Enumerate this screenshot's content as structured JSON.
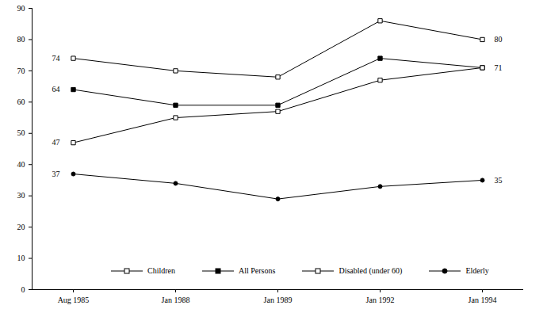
{
  "chart_data": {
    "type": "line",
    "categories": [
      "Aug 1985",
      "Jan 1988",
      "Jan 1989",
      "Jan 1992",
      "Jan 1994"
    ],
    "series": [
      {
        "name": "Children",
        "color": "#000000",
        "marker": "square-open",
        "values": [
          74,
          70,
          68,
          86,
          80
        ],
        "value_labels": [
          "74",
          null,
          null,
          null,
          "80"
        ]
      },
      {
        "name": "All Persons",
        "color": "#000000",
        "marker": "square",
        "values": [
          64,
          59,
          59,
          74,
          71
        ],
        "value_labels": [
          "64",
          null,
          null,
          null,
          "71"
        ]
      },
      {
        "name": "Disabled (under 60)",
        "color": "#000000",
        "marker": "square-open",
        "values": [
          47,
          55,
          57,
          67,
          71
        ],
        "value_labels": [
          "47",
          null,
          null,
          null,
          null
        ]
      },
      {
        "name": "Elderly",
        "color": "#000000",
        "marker": "circle",
        "values": [
          37,
          34,
          29,
          33,
          35
        ],
        "value_labels": [
          "37",
          null,
          null,
          null,
          "35"
        ]
      }
    ],
    "ylim": [
      0,
      90
    ],
    "yticks": [
      0,
      10,
      20,
      30,
      40,
      50,
      60,
      70,
      80,
      90
    ],
    "grid": false,
    "legend": "bottom"
  }
}
